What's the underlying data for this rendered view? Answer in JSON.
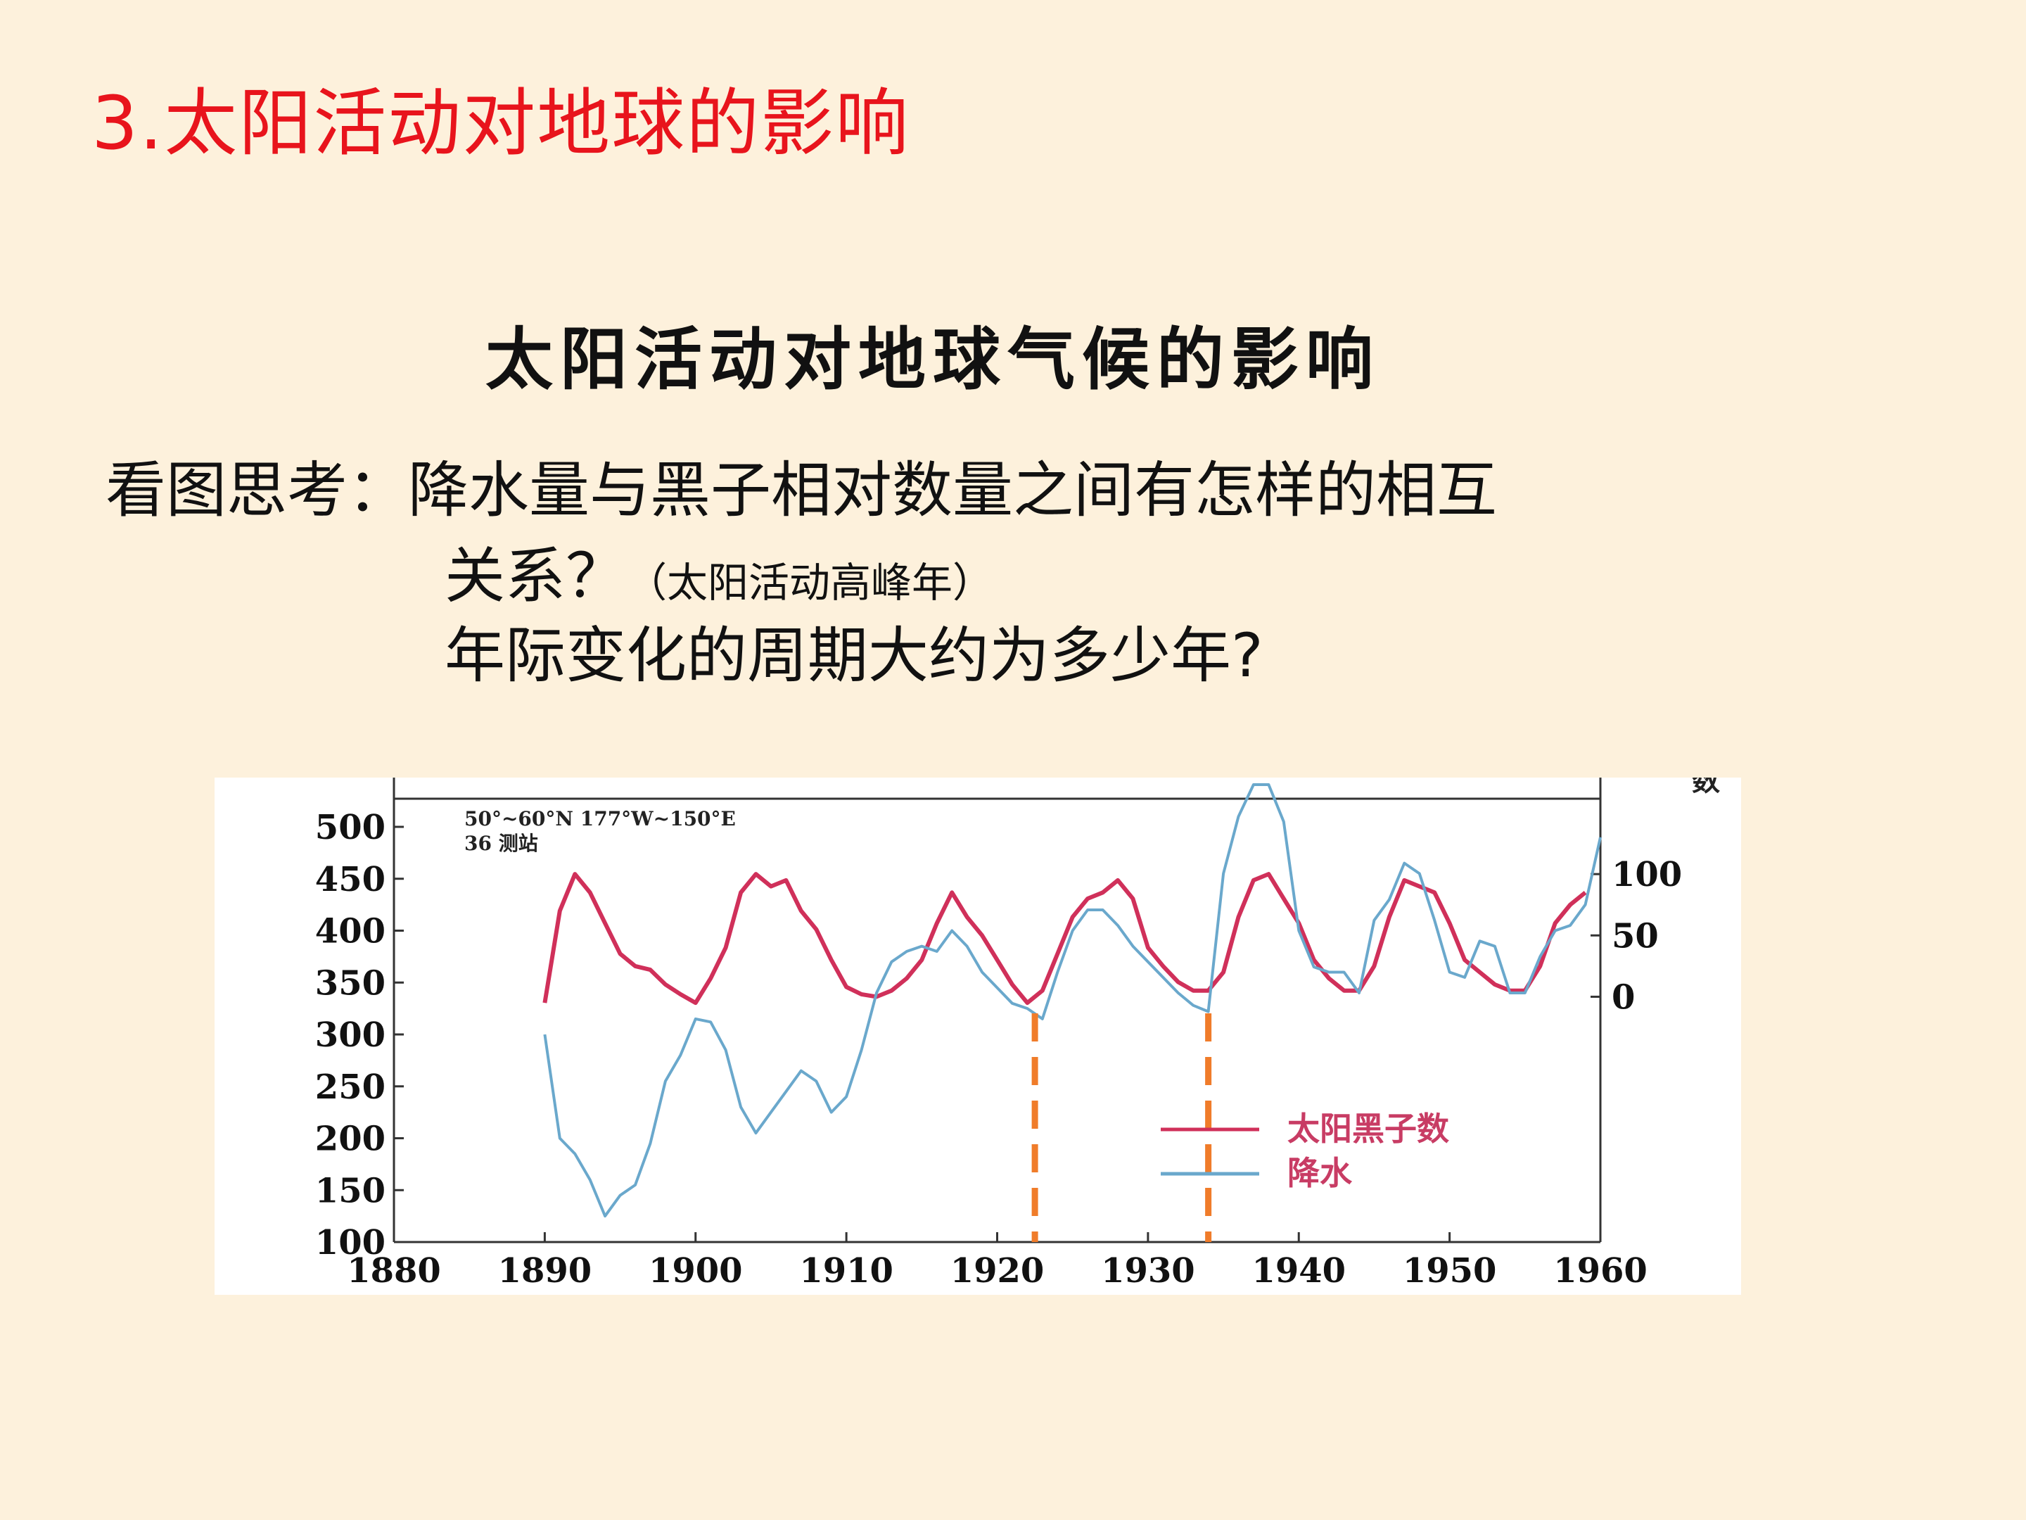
{
  "heading": "3.太阳活动对地球的影响",
  "subheading": "太阳活动对地球气候的影响",
  "question": {
    "prefix": "看图思考：",
    "line1": "降水量与黑子相对数量之间有怎样的相互",
    "line2": "关系？",
    "hint": "（太阳活动高峰年）",
    "line3": "年际变化的周期大约为多少年?"
  },
  "colors": {
    "heading": "#e8141c",
    "sunspot": "#d0305a",
    "precipitation": "#6aa8cc",
    "marker": "#f07c2a",
    "legend_text": "#c83c64"
  },
  "chart_data": {
    "type": "line",
    "title": "",
    "annotation_line1": "50°~60°N 177°W~150°E",
    "annotation_line2": "36 测站",
    "right_axis_label": "数",
    "x_ticks": [
      "1880",
      "1890",
      "1900",
      "1910",
      "1920",
      "1930",
      "1940",
      "1950",
      "1960"
    ],
    "xlim": [
      1880,
      1960
    ],
    "left_ticks": [
      "500",
      "450",
      "400",
      "350",
      "300",
      "250",
      "200",
      "150",
      "100"
    ],
    "left_ylim": [
      100,
      500
    ],
    "right_ticks": [
      "100",
      "50",
      "0"
    ],
    "right_ylim": [
      -200,
      150
    ],
    "legend_position": "bottom-right",
    "grid": false,
    "markers": [
      1922.5,
      1934
    ],
    "series": [
      {
        "name": "太阳黑子数",
        "axis": "right",
        "x": [
          1890,
          1891,
          1892,
          1893,
          1894,
          1895,
          1896,
          1897,
          1898,
          1899,
          1900,
          1901,
          1902,
          1903,
          1904,
          1905,
          1906,
          1907,
          1908,
          1909,
          1910,
          1911,
          1912,
          1913,
          1914,
          1915,
          1916,
          1917,
          1918,
          1919,
          1920,
          1921,
          1922,
          1923,
          1924,
          1925,
          1926,
          1927,
          1928,
          1929,
          1930,
          1931,
          1932,
          1933,
          1934,
          1935,
          1936,
          1937,
          1938,
          1939,
          1940,
          1941,
          1942,
          1943,
          1944,
          1945,
          1946,
          1947,
          1948,
          1949,
          1950,
          1951,
          1952,
          1953,
          1954,
          1955,
          1956,
          1957,
          1958,
          1959
        ],
        "values": [
          -5,
          70,
          100,
          85,
          60,
          35,
          25,
          22,
          10,
          2,
          -5,
          15,
          40,
          85,
          100,
          90,
          95,
          70,
          55,
          30,
          8,
          2,
          0,
          5,
          15,
          30,
          60,
          85,
          65,
          50,
          30,
          10,
          -5,
          5,
          35,
          65,
          80,
          85,
          95,
          80,
          40,
          25,
          12,
          5,
          5,
          20,
          65,
          95,
          100,
          80,
          60,
          30,
          15,
          5,
          5,
          25,
          65,
          95,
          90,
          85,
          60,
          30,
          20,
          10,
          5,
          5,
          25,
          60,
          75,
          85
        ]
      },
      {
        "name": "降水",
        "axis": "left",
        "x": [
          1890,
          1891,
          1892,
          1893,
          1894,
          1895,
          1896,
          1897,
          1898,
          1899,
          1900,
          1901,
          1902,
          1903,
          1904,
          1905,
          1906,
          1907,
          1908,
          1909,
          1910,
          1911,
          1912,
          1913,
          1914,
          1915,
          1916,
          1917,
          1918,
          1919,
          1920,
          1921,
          1922,
          1923,
          1924,
          1925,
          1926,
          1927,
          1928,
          1929,
          1930,
          1931,
          1932,
          1933,
          1934,
          1935,
          1936,
          1937,
          1938,
          1939,
          1940,
          1941,
          1942,
          1943,
          1944,
          1945,
          1946,
          1947,
          1948,
          1949,
          1950,
          1951,
          1952,
          1953,
          1954,
          1955,
          1956,
          1957,
          1958,
          1959,
          1960
        ],
        "values": [
          300,
          200,
          185,
          160,
          125,
          145,
          155,
          195,
          255,
          280,
          315,
          312,
          285,
          230,
          205,
          225,
          245,
          265,
          255,
          225,
          240,
          285,
          340,
          370,
          380,
          385,
          380,
          400,
          385,
          360,
          345,
          330,
          325,
          315,
          360,
          400,
          420,
          420,
          405,
          385,
          370,
          355,
          340,
          328,
          322,
          455,
          510,
          550,
          560,
          505,
          400,
          365,
          360,
          360,
          340,
          410,
          430,
          465,
          455,
          410,
          360,
          355,
          390,
          385,
          340,
          340,
          375,
          400,
          405,
          425,
          490
        ]
      }
    ]
  }
}
